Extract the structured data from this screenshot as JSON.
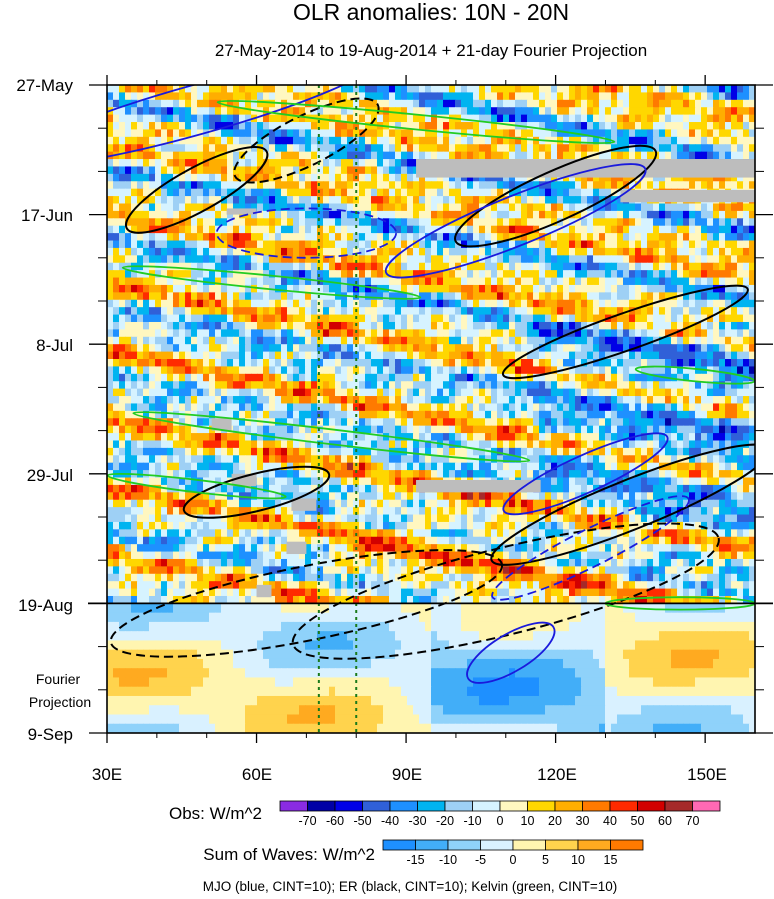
{
  "chart_data": {
    "type": "heatmap",
    "title": "OLR anomalies: 10N - 20N",
    "subtitle": "27-May-2014 to 19-Aug-2014 + 21-day Fourier Projection",
    "x": {
      "min": 30,
      "max": 160,
      "ticks": [
        30,
        60,
        90,
        120,
        150
      ],
      "tick_labels": [
        "30E",
        "60E",
        "90E",
        "120E",
        "150E"
      ],
      "minor_ticks": [
        40,
        50,
        70,
        80,
        100,
        110,
        130,
        140
      ]
    },
    "y": {
      "start_day": 0,
      "end_day": 105,
      "ticks": [
        0,
        21,
        42,
        63,
        84,
        105
      ],
      "tick_labels": [
        "27-May",
        "17-Jun",
        "8-Jul",
        "29-Jul",
        "19-Aug",
        "9-Sep"
      ],
      "projection_label": "Fourier Projection",
      "observation_end_day": 84
    },
    "reference_lines_lon": [
      72.5,
      80
    ],
    "obs_colorbar": {
      "label": "Obs: W/m^2",
      "levels": [
        "-70",
        "-60",
        "-50",
        "-40",
        "-30",
        "-20",
        "-10",
        "0",
        "10",
        "20",
        "30",
        "40",
        "50",
        "60",
        "70"
      ],
      "colors": [
        "#8a2be2",
        "#0000a6",
        "#0000e6",
        "#3060d8",
        "#1e90ff",
        "#00b4f0",
        "#9ed0f5",
        "#d6f3ff",
        "#fff7c0",
        "#ffd700",
        "#ffae00",
        "#ff7a00",
        "#ff2a00",
        "#d20000",
        "#a52a2a",
        "#ff69b4"
      ]
    },
    "waves_colorbar": {
      "label": "Sum of Waves: W/m^2",
      "levels": [
        "-15",
        "-10",
        "-5",
        "0",
        "5",
        "10",
        "15"
      ],
      "colors": [
        "#1e90ff",
        "#42aef8",
        "#8fd2fa",
        "#d9f1ff",
        "#fff5b0",
        "#ffd34d",
        "#ffaa20",
        "#ff7a00"
      ]
    },
    "wave_key": "MJO (blue, CINT=10); ER (black, CINT=10); Kelvin (green, CINT=10)",
    "wave_colors": {
      "mjo": "#1a1adc",
      "er": "#000000",
      "kelvin": "#22cc22"
    },
    "mjo_contours": [
      {
        "lon": 48,
        "day": 4,
        "dlon": 38,
        "dday": 4,
        "slope": 0.28,
        "sign": 1
      },
      {
        "lon": 112,
        "day": 22,
        "dlon": 28,
        "dday": 4,
        "slope": 0.4,
        "sign": 1
      },
      {
        "lon": 70,
        "day": 24,
        "dlon": 18,
        "dday": 4,
        "slope": 0.0,
        "sign": -1
      },
      {
        "lon": 126,
        "day": 63,
        "dlon": 18,
        "dday": 3,
        "slope": 0.45,
        "sign": 1
      },
      {
        "lon": 127,
        "day": 75,
        "dlon": 22,
        "dday": 3,
        "slope": 0.5,
        "sign": -1
      },
      {
        "lon": 111,
        "day": 92,
        "dlon": 10,
        "dday": 3,
        "slope": 0.6,
        "sign": 1
      }
    ],
    "er_contours": [
      {
        "lon": 48,
        "day": 17,
        "dlon": 16,
        "dday": 3.5,
        "slope": 0.55,
        "sign": 1
      },
      {
        "lon": 70,
        "day": 9,
        "dlon": 16,
        "dday": 4,
        "slope": 0.5,
        "sign": -1
      },
      {
        "lon": 120,
        "day": 18,
        "dlon": 22,
        "dday": 4,
        "slope": 0.45,
        "sign": 1
      },
      {
        "lon": 134,
        "day": 40,
        "dlon": 26,
        "dday": 3,
        "slope": 0.35,
        "sign": 1
      },
      {
        "lon": 135,
        "day": 68,
        "dlon": 30,
        "dday": 4,
        "slope": 0.4,
        "sign": 1
      },
      {
        "lon": 60,
        "day": 66,
        "dlon": 15,
        "dday": 3,
        "slope": 0.25,
        "sign": 1
      },
      {
        "lon": 70,
        "day": 84,
        "dlon": 40,
        "dday": 6,
        "slope": 0.2,
        "sign": -1
      },
      {
        "lon": 110,
        "day": 82,
        "dlon": 44,
        "dday": 7,
        "slope": 0.25,
        "sign": -1
      }
    ],
    "kelvin_contours": [
      {
        "lon": 92,
        "day": 6,
        "dlon": 40,
        "dday": 1.2,
        "slope": -0.1,
        "sign": 1
      },
      {
        "lon": 63,
        "day": 32,
        "dlon": 30,
        "dday": 1.1,
        "slope": -0.1,
        "sign": 1
      },
      {
        "lon": 75,
        "day": 57,
        "dlon": 40,
        "dday": 1.2,
        "slope": -0.12,
        "sign": 1
      },
      {
        "lon": 148,
        "day": 47,
        "dlon": 12,
        "dday": 1,
        "slope": -0.1,
        "sign": 1
      },
      {
        "lon": 48,
        "day": 65,
        "dlon": 18,
        "dday": 1,
        "slope": -0.12,
        "sign": 1
      },
      {
        "lon": 145,
        "day": 84,
        "dlon": 15,
        "dday": 1,
        "slope": 0,
        "sign": 1
      }
    ],
    "missing_patches": [
      {
        "lon0": 92,
        "lon1": 160,
        "day0": 12,
        "day1": 15
      },
      {
        "lon0": 133,
        "lon1": 160,
        "day0": 17,
        "day1": 19
      },
      {
        "lon0": 92,
        "lon1": 117,
        "day0": 64,
        "day1": 66
      },
      {
        "lon0": 54,
        "lon1": 60,
        "day0": 20,
        "day1": 21
      },
      {
        "lon0": 55,
        "lon1": 60,
        "day0": 63,
        "day1": 65
      },
      {
        "lon0": 67,
        "lon1": 72,
        "day0": 67,
        "day1": 69
      },
      {
        "lon0": 66,
        "lon1": 70,
        "day0": 74,
        "day1": 76
      },
      {
        "lon0": 60,
        "lon1": 63,
        "day0": 81,
        "day1": 83
      },
      {
        "lon0": 51,
        "lon1": 55,
        "day0": 54,
        "day1": 56
      }
    ]
  }
}
